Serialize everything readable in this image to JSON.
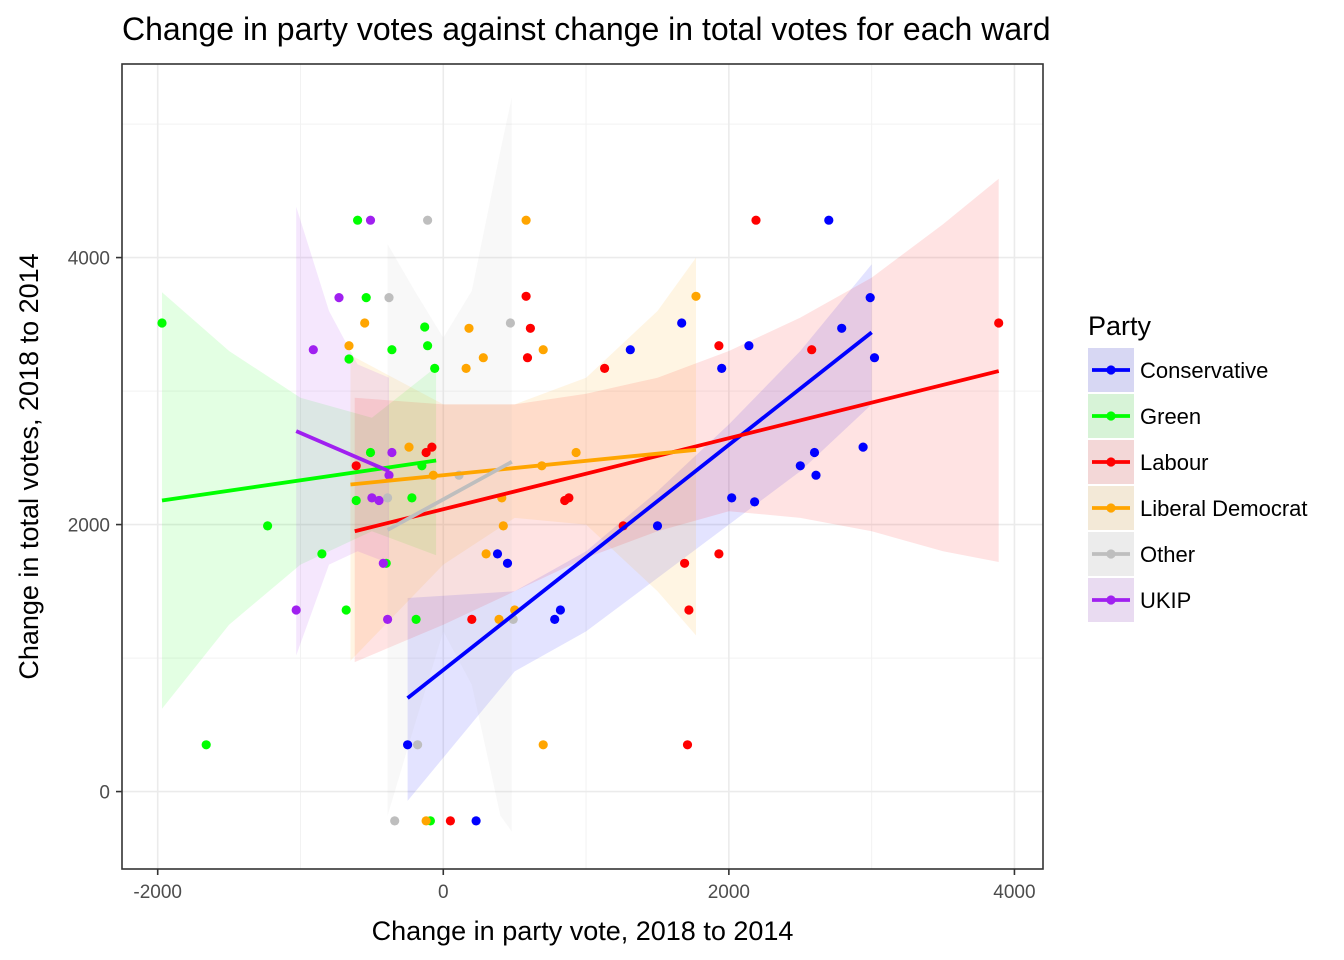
{
  "chart_data": {
    "type": "scatter",
    "title": "Change in party votes against change in total votes for each ward",
    "xlabel": "Change in party vote, 2018 to 2014",
    "ylabel": "Change in total votes, 2018 to 2014",
    "xlim": [
      -2250,
      4200
    ],
    "ylim": [
      -580,
      5450
    ],
    "x_ticks": [
      -2000,
      0,
      2000,
      4000
    ],
    "y_ticks": [
      0,
      2000,
      4000
    ],
    "x_tick_labels": [
      "-2000",
      "0",
      "2000",
      "4000"
    ],
    "y_tick_labels": [
      "0",
      "2000",
      "4000"
    ],
    "grid": true,
    "legend": {
      "title": "Party",
      "position": "right"
    },
    "series": [
      {
        "name": "Conservative",
        "color": "#0000ff",
        "trend": {
          "x": [
            -250,
            3000
          ],
          "y": [
            700,
            3440
          ]
        },
        "band": {
          "x": [
            -250,
            500,
            1000,
            1500,
            2000,
            2500,
            3000
          ],
          "upper": [
            1450,
            1500,
            1800,
            2250,
            2750,
            3300,
            3950
          ],
          "lower": [
            -70,
            900,
            1200,
            1600,
            2000,
            2400,
            2900
          ]
        },
        "points": [
          {
            "x": -250,
            "y": 350
          },
          {
            "x": 230,
            "y": -220
          },
          {
            "x": 380,
            "y": 1780
          },
          {
            "x": 450,
            "y": 1710
          },
          {
            "x": 780,
            "y": 1290
          },
          {
            "x": 820,
            "y": 1360
          },
          {
            "x": 1310,
            "y": 3310
          },
          {
            "x": 1500,
            "y": 1990
          },
          {
            "x": 1670,
            "y": 3510
          },
          {
            "x": 1950,
            "y": 3170
          },
          {
            "x": 2020,
            "y": 2200
          },
          {
            "x": 2140,
            "y": 3340
          },
          {
            "x": 2180,
            "y": 2170
          },
          {
            "x": 2500,
            "y": 2440
          },
          {
            "x": 2600,
            "y": 2540
          },
          {
            "x": 2610,
            "y": 2370
          },
          {
            "x": 2700,
            "y": 4280
          },
          {
            "x": 2790,
            "y": 3470
          },
          {
            "x": 2940,
            "y": 2580
          },
          {
            "x": 2990,
            "y": 3700
          },
          {
            "x": 3020,
            "y": 3250
          }
        ]
      },
      {
        "name": "Green",
        "color": "#00ff00",
        "trend": {
          "x": [
            -1970,
            -50
          ],
          "y": [
            2180,
            2480
          ]
        },
        "band": {
          "x": [
            -1970,
            -1500,
            -1000,
            -500,
            -50
          ],
          "upper": [
            3740,
            3300,
            2950,
            2800,
            3180
          ],
          "lower": [
            620,
            1250,
            1700,
            1950,
            1770
          ]
        },
        "points": [
          {
            "x": -1970,
            "y": 3510
          },
          {
            "x": -1660,
            "y": 350
          },
          {
            "x": -1230,
            "y": 1990
          },
          {
            "x": -850,
            "y": 1780
          },
          {
            "x": -680,
            "y": 1360
          },
          {
            "x": -660,
            "y": 3240
          },
          {
            "x": -600,
            "y": 4280
          },
          {
            "x": -610,
            "y": 2180
          },
          {
            "x": -540,
            "y": 3700
          },
          {
            "x": -510,
            "y": 2540
          },
          {
            "x": -400,
            "y": 1710
          },
          {
            "x": -360,
            "y": 3310
          },
          {
            "x": -220,
            "y": 2200
          },
          {
            "x": -190,
            "y": 1290
          },
          {
            "x": -130,
            "y": 3480
          },
          {
            "x": -110,
            "y": 3340
          },
          {
            "x": -90,
            "y": -220
          },
          {
            "x": -60,
            "y": 3170
          },
          {
            "x": -150,
            "y": 2440
          }
        ]
      },
      {
        "name": "Labour",
        "color": "#ff0000",
        "trend": {
          "x": [
            -620,
            3890
          ],
          "y": [
            1950,
            3150
          ]
        },
        "band": {
          "x": [
            -620,
            0,
            500,
            1000,
            1500,
            2000,
            2500,
            3000,
            3500,
            3890
          ],
          "upper": [
            2950,
            2900,
            2900,
            2980,
            3100,
            3300,
            3550,
            3850,
            4250,
            4590
          ],
          "lower": [
            970,
            1250,
            1500,
            1750,
            1950,
            2100,
            2050,
            1950,
            1800,
            1720
          ]
        },
        "points": [
          {
            "x": -610,
            "y": 2440
          },
          {
            "x": -120,
            "y": 2540
          },
          {
            "x": -80,
            "y": 2580
          },
          {
            "x": 50,
            "y": -220
          },
          {
            "x": 200,
            "y": 1290
          },
          {
            "x": 580,
            "y": 3710
          },
          {
            "x": 590,
            "y": 3250
          },
          {
            "x": 610,
            "y": 3470
          },
          {
            "x": 850,
            "y": 2180
          },
          {
            "x": 880,
            "y": 2200
          },
          {
            "x": 1130,
            "y": 3170
          },
          {
            "x": 1260,
            "y": 1990
          },
          {
            "x": 1690,
            "y": 1710
          },
          {
            "x": 1710,
            "y": 350
          },
          {
            "x": 1720,
            "y": 1360
          },
          {
            "x": 1930,
            "y": 3340
          },
          {
            "x": 1930,
            "y": 1780
          },
          {
            "x": 2190,
            "y": 4280
          },
          {
            "x": 2580,
            "y": 3310
          },
          {
            "x": 3890,
            "y": 3510
          }
        ]
      },
      {
        "name": "Liberal Democrat",
        "color": "#ffa500",
        "trend": {
          "x": [
            -650,
            1770
          ],
          "y": [
            2300,
            2560
          ]
        },
        "band": {
          "x": [
            -650,
            0,
            500,
            1000,
            1500,
            1770
          ],
          "upper": [
            3270,
            2900,
            2900,
            3100,
            3600,
            4000
          ],
          "lower": [
            980,
            1700,
            2050,
            2000,
            1500,
            1170
          ]
        },
        "points": [
          {
            "x": -660,
            "y": 3340
          },
          {
            "x": -550,
            "y": 3510
          },
          {
            "x": -240,
            "y": 2580
          },
          {
            "x": -120,
            "y": -220
          },
          {
            "x": -70,
            "y": 2370
          },
          {
            "x": 160,
            "y": 3170
          },
          {
            "x": 180,
            "y": 3470
          },
          {
            "x": 280,
            "y": 3250
          },
          {
            "x": 300,
            "y": 1780
          },
          {
            "x": 390,
            "y": 1290
          },
          {
            "x": 410,
            "y": 2200
          },
          {
            "x": 420,
            "y": 1990
          },
          {
            "x": 500,
            "y": 1360
          },
          {
            "x": 580,
            "y": 4280
          },
          {
            "x": 690,
            "y": 2440
          },
          {
            "x": 700,
            "y": 3310
          },
          {
            "x": 700,
            "y": 350
          },
          {
            "x": 930,
            "y": 2540
          },
          {
            "x": 1770,
            "y": 3710
          }
        ]
      },
      {
        "name": "Other",
        "color": "#bebebe",
        "trend": {
          "x": [
            -390,
            480
          ],
          "y": [
            1960,
            2470
          ]
        },
        "band": {
          "x": [
            -390,
            -200,
            0,
            200,
            400,
            480
          ],
          "upper": [
            4100,
            3750,
            3400,
            3750,
            4800,
            5200
          ],
          "lower": [
            -180,
            500,
            1200,
            800,
            -180,
            -300
          ]
        },
        "points": [
          {
            "x": -380,
            "y": 3700
          },
          {
            "x": -390,
            "y": 2200
          },
          {
            "x": -340,
            "y": -220
          },
          {
            "x": -180,
            "y": 350
          },
          {
            "x": -110,
            "y": 4280
          },
          {
            "x": 110,
            "y": 2370
          },
          {
            "x": 470,
            "y": 3510
          },
          {
            "x": 490,
            "y": 1290
          }
        ]
      },
      {
        "name": "UKIP",
        "color": "#a020f0",
        "trend": {
          "x": [
            -1030,
            -380
          ],
          "y": [
            2700,
            2400
          ]
        },
        "band": {
          "x": [
            -1030,
            -800,
            -600,
            -380
          ],
          "upper": [
            4380,
            3600,
            3200,
            3100
          ],
          "lower": [
            1020,
            1700,
            1800,
            1710
          ]
        },
        "points": [
          {
            "x": -1030,
            "y": 1360
          },
          {
            "x": -910,
            "y": 3310
          },
          {
            "x": -730,
            "y": 3700
          },
          {
            "x": -510,
            "y": 4280
          },
          {
            "x": -500,
            "y": 2200
          },
          {
            "x": -450,
            "y": 2180
          },
          {
            "x": -420,
            "y": 1710
          },
          {
            "x": -390,
            "y": 1290
          },
          {
            "x": -380,
            "y": 2370
          },
          {
            "x": -360,
            "y": 2540
          }
        ]
      }
    ]
  }
}
